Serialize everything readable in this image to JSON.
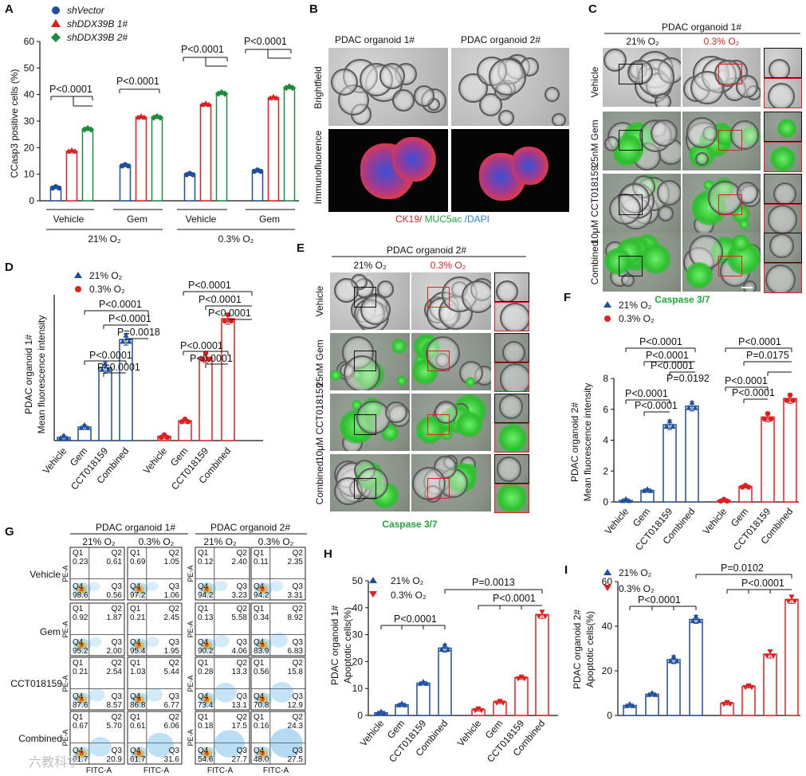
{
  "panels": {
    "A": {
      "letter": "A",
      "legend": [
        "shVector",
        "shDDX39B 1#",
        "shDDX39B 2#"
      ],
      "ylabel": "CCasp3 positive cells (%)",
      "yticks": [
        "0",
        "10",
        "20",
        "30",
        "40",
        "50",
        "60"
      ],
      "groups": [
        "Vehicle",
        "Gem",
        "Vehicle",
        "Gem"
      ],
      "conditions": [
        "21% O₂",
        "0.3% O₂"
      ],
      "pvals": [
        "P<0.0001",
        "P<0.0001",
        "P<0.0001",
        "P<0.0001"
      ]
    },
    "B": {
      "letter": "B",
      "col1": "PDAC organoid 1#",
      "col2": "PDAC organoid 2#",
      "row1": "Brightfield",
      "row2": "Immunofluorence",
      "stain_ck19": "CK19/",
      "stain_muc": " MUC5ac",
      "stain_dapi": " /DAPI"
    },
    "C": {
      "letter": "C",
      "title": "PDAC organoid 1#",
      "o21": "21% O₂",
      "o03": "0.3% O₂",
      "rows": [
        "Vehicle",
        "25nM Gem",
        "10μM CCT018159",
        "Combined"
      ],
      "caption": "Caspase 3/7"
    },
    "D": {
      "letter": "D",
      "legend": [
        "21% O₂",
        "0.3% O₂"
      ],
      "ylabel1": "PDAC organoid 1#",
      "ylabel2": "Mean fluorescence intensity",
      "cats": [
        "Vehicle",
        "Gem",
        "CCT018159",
        "Combined",
        "Vehicle",
        "Gem",
        "CCT018159",
        "Combined"
      ],
      "pvals": [
        "P<0.0001",
        "P<0.0001",
        "P=0.0018",
        "P<0.0001",
        "P<0.0001",
        "P<0.0001",
        "P<0.0001",
        "P<0.0001",
        "P<0.0001",
        "P<0.0001"
      ]
    },
    "E": {
      "letter": "E",
      "title": "PDAC organoid 2#",
      "o21": "21% O₂",
      "o03": "0.3% O₂",
      "rows": [
        "Vehicle",
        "25nM Gem",
        "10μM CCT018159",
        "Combined"
      ],
      "caption": "Caspase 3/7"
    },
    "F": {
      "letter": "F",
      "legend": [
        "21% O₂",
        "0.3% O₂"
      ],
      "ylabel1": "PDAC organoid 2#",
      "ylabel2": "Mean fluorescence intensity",
      "yticks": [
        "0",
        "2",
        "4",
        "6",
        "8"
      ],
      "cats": [
        "Vehicle",
        "Gem",
        "CCT018159",
        "Combined",
        "Vehicle",
        "Gem",
        "CCT018159",
        "Combined"
      ],
      "pvals": [
        "P<0.0001",
        "P<0.0001",
        "P<0.0001",
        "P=0.0192",
        "P<0.0001",
        "P<0.0001",
        "P<0.0001",
        "P=0.0175",
        "P<0.0001",
        "P<0.0001"
      ]
    },
    "G": {
      "letter": "G",
      "org1": "PDAC organoid 1#",
      "org2": "PDAC organoid 2#",
      "o21": "21% O₂",
      "o03": "0.3% O₂",
      "rows": [
        "Vehicle",
        "Gem",
        "CCT018159",
        "Combined"
      ],
      "pe": "PE-A",
      "fitc": "FITC-A",
      "quads": [
        [
          [
            "0.23",
            "0.61",
            "98.6",
            "0.56"
          ],
          [
            "0.69",
            "1.05",
            "97.2",
            "1.06"
          ],
          [
            "0.12",
            "2.40",
            "94.2",
            "3.23"
          ],
          [
            "0.11",
            "2.35",
            "94.2",
            "3.31"
          ]
        ],
        [
          [
            "0.92",
            "1.87",
            "95.2",
            "2.00"
          ],
          [
            "0.21",
            "2.45",
            "95.4",
            "1.95"
          ],
          [
            "0.13",
            "5.58",
            "90.2",
            "4.06"
          ],
          [
            "0.34",
            "8.92",
            "83.9",
            "6.83"
          ]
        ],
        [
          [
            "0.21",
            "2.54",
            "87.6",
            "8.57"
          ],
          [
            "1.03",
            "5.44",
            "86.8",
            "6.77"
          ],
          [
            "0.28",
            "13.3",
            "73.4",
            "13.1"
          ],
          [
            "0.56",
            "15.8",
            "70.8",
            "12.9"
          ]
        ],
        [
          [
            "0.67",
            "5.70",
            "61.7",
            "20.9"
          ],
          [
            "0.61",
            "6.06",
            "61.7",
            "31.6"
          ],
          [
            "0.18",
            "17.5",
            "54.6",
            "27.7"
          ],
          [
            "0.16",
            "24.3",
            "48.0",
            "27.5"
          ]
        ]
      ],
      "qnames": [
        "Q1",
        "Q2",
        "Q4",
        "Q3"
      ]
    },
    "H": {
      "letter": "H",
      "legend": [
        "21% O₂",
        "0.3% O₂"
      ],
      "ylabel1": "PDAC organoid 1#",
      "ylabel2": "Apoptotic cells(%)",
      "yticks": [
        "0",
        "10",
        "20",
        "30",
        "40",
        "50"
      ],
      "cats": [
        "Vehicle",
        "Gem",
        "CCT018159",
        "Combined",
        "Vehicle",
        "Gem",
        "CCT018159",
        "Combined"
      ],
      "pvals": [
        "P<0.0001",
        "P=0.0013",
        "P<0.0001"
      ]
    },
    "I": {
      "letter": "I",
      "legend": [
        "21% O₂",
        "0.3% O₂"
      ],
      "ylabel1": "PDAC organoid 2#",
      "ylabel2": "Apoptotic cells(%)",
      "yticks": [
        "0",
        "20",
        "40",
        "60"
      ],
      "pvals": [
        "P<0.0001",
        "P=0.0102",
        "P<0.0001"
      ]
    }
  },
  "watermark": "六教科学",
  "chart_data": [
    {
      "panel": "A",
      "type": "bar",
      "categories": [
        "21% O₂ Vehicle",
        "21% O₂ Gem",
        "0.3% O₂ Vehicle",
        "0.3% O₂ Gem"
      ],
      "series": [
        {
          "name": "shVector",
          "values": [
            5,
            13.3,
            10,
            11.3
          ]
        },
        {
          "name": "shDDX39B 1#",
          "values": [
            18.7,
            31.5,
            36.3,
            38.8
          ]
        },
        {
          "name": "shDDX39B 2#",
          "values": [
            27,
            31.5,
            40.5,
            42.7
          ]
        }
      ],
      "ylabel": "CCasp3 positive cells (%)",
      "ylim": [
        0,
        60
      ],
      "colors": [
        "#1d4f9c",
        "#e02020",
        "#1e8a3c"
      ]
    },
    {
      "panel": "D",
      "type": "bar",
      "categories": [
        "Vehicle",
        "Gem",
        "CCT018159",
        "Combined"
      ],
      "series": [
        {
          "name": "21% O₂",
          "values": [
            0.3,
            1.3,
            7,
            9.7
          ]
        },
        {
          "name": "0.3% O₂",
          "values": [
            0.4,
            1.9,
            8,
            11.7
          ]
        }
      ],
      "ylabel": "PDAC organoid 1# Mean fluorescence intensity",
      "ylim": [
        0,
        14
      ],
      "colors": [
        "#1d4f9c",
        "#e02020"
      ]
    },
    {
      "panel": "F",
      "type": "bar",
      "categories": [
        "Vehicle",
        "Gem",
        "CCT018159",
        "Combined"
      ],
      "series": [
        {
          "name": "21% O₂",
          "values": [
            0.1,
            0.75,
            5,
            6.2
          ]
        },
        {
          "name": "0.3% O₂",
          "values": [
            0.1,
            1.0,
            5.5,
            6.7
          ]
        }
      ],
      "ylabel": "PDAC organoid 2# Mean fluorescence intensity",
      "ylim": [
        0,
        8
      ],
      "colors": [
        "#1d4f9c",
        "#e02020"
      ]
    },
    {
      "panel": "H",
      "type": "bar",
      "categories": [
        "Vehicle",
        "Gem",
        "CCT018159",
        "Combined"
      ],
      "series": [
        {
          "name": "21% O₂",
          "values": [
            1,
            4,
            12,
            25
          ]
        },
        {
          "name": "0.3% O₂",
          "values": [
            2.2,
            5,
            14,
            37.5
          ]
        }
      ],
      "ylabel": "PDAC organoid 1# Apoptotic cells(%)",
      "ylim": [
        0,
        50
      ],
      "colors": [
        "#1d4f9c",
        "#e02020"
      ]
    },
    {
      "panel": "I",
      "type": "bar",
      "categories": [
        "Vehicle",
        "Gem",
        "CCT018159",
        "Combined"
      ],
      "series": [
        {
          "name": "21% O₂",
          "values": [
            4.5,
            9.5,
            25,
            43
          ]
        },
        {
          "name": "0.3% O₂",
          "values": [
            5.5,
            13,
            27.5,
            52
          ]
        }
      ],
      "ylabel": "PDAC organoid 2# Apoptotic cells(%)",
      "ylim": [
        0,
        60
      ],
      "colors": [
        "#1d4f9c",
        "#e02020"
      ]
    }
  ]
}
